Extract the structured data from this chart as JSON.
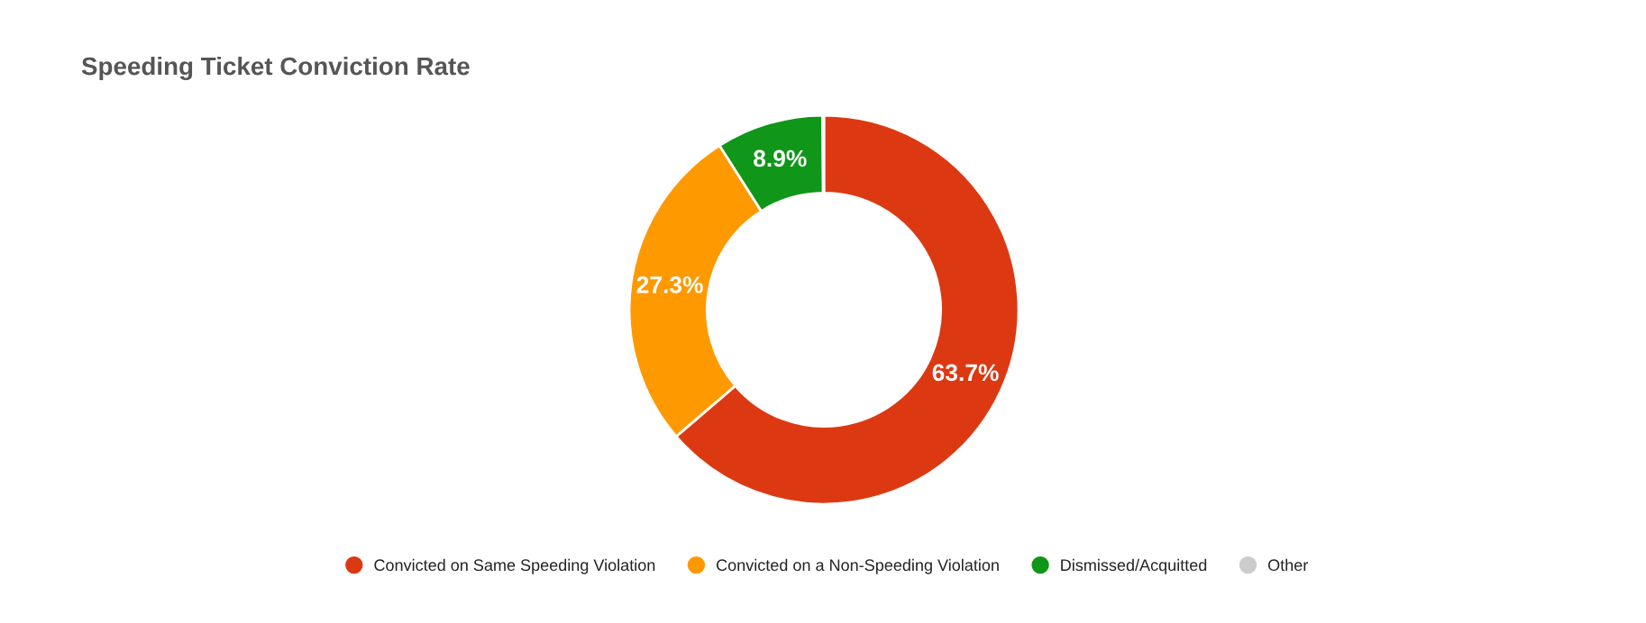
{
  "chart_data": {
    "type": "donut",
    "title": "Speeding Ticket Conviction Rate",
    "categories": [
      "Convicted on Same Speeding Violation",
      "Convicted on a Non-Speeding Violation",
      "Dismissed/Acquitted",
      "Other"
    ],
    "values": [
      63.7,
      27.3,
      8.9,
      0.1
    ],
    "colors": [
      "#dc3912",
      "#ff9900",
      "#109618",
      "#cccccc"
    ],
    "value_labels": [
      "63.7%",
      "27.3%",
      "8.9%",
      null
    ],
    "legend": "bottom"
  }
}
